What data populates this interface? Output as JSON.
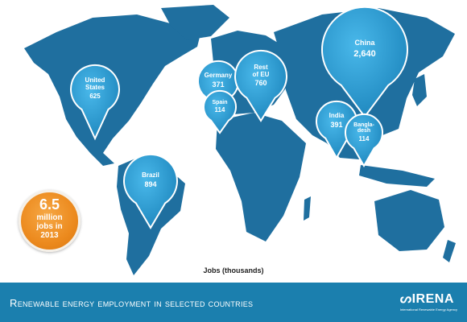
{
  "chart_data": {
    "type": "map",
    "title": "Renewable energy employment in selected countries",
    "unit_label": "Jobs (thousands)",
    "points": [
      {
        "label": "United States",
        "label_lines": [
          "United",
          "States"
        ],
        "value": "625"
      },
      {
        "label": "Brazil",
        "label_lines": [
          "Brazil"
        ],
        "value": "894"
      },
      {
        "label": "Germany",
        "label_lines": [
          "Germany"
        ],
        "value": "371"
      },
      {
        "label": "Spain",
        "label_lines": [
          "Spain"
        ],
        "value": "114"
      },
      {
        "label": "Rest of EU",
        "label_lines": [
          "Rest",
          "of EU"
        ],
        "value": "760"
      },
      {
        "label": "China",
        "label_lines": [
          "China"
        ],
        "value": "2,640"
      },
      {
        "label": "India",
        "label_lines": [
          "India"
        ],
        "value": "391"
      },
      {
        "label": "Bangladesh",
        "label_lines": [
          "Bangla-",
          "desh"
        ],
        "value": "114"
      }
    ],
    "total_badge": [
      "6.5",
      "million",
      "jobs in",
      "2013"
    ]
  },
  "brand": {
    "name": "IRENA",
    "tagline": "International Renewable Energy Agency"
  },
  "colors": {
    "map": "#1f6f9f",
    "pin": "#2a9fd6",
    "banner": "#1b7fae",
    "badge": "#ec8a1e"
  }
}
